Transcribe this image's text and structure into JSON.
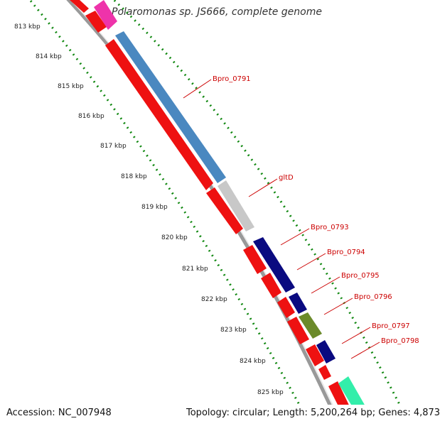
{
  "title": "Polaromonas sp. JS666, complete genome",
  "footer": {
    "accession": "Accession: NC_007948",
    "summary": "Topology: circular; Length: 5,200,264 bp; Genes: 4,873"
  },
  "ruler": {
    "unit": "kbp",
    "ticks": [
      "813 kbp",
      "814 kbp",
      "815 kbp",
      "816 kbp",
      "817 kbp",
      "818 kbp",
      "819 kbp",
      "820 kbp",
      "821 kbp",
      "822 kbp",
      "823 kbp",
      "824 kbp",
      "825 kbp"
    ]
  },
  "gene_labels": [
    "Bpro_0791",
    "gltD",
    "Bpro_0793",
    "Bpro_0794",
    "Bpro_0795",
    "Bpro_0796",
    "Bpro_0797",
    "Bpro_0798"
  ],
  "colors": {
    "cds": "#ee1111",
    "backbone": "#999999",
    "gc_dots": "#118811",
    "label": "#cc0000",
    "steelblue": "#4a88c0",
    "lightgrey": "#c8c8c8",
    "navy": "#0a0a80",
    "olive": "#6b8a2a",
    "magenta": "#ee33aa",
    "aqua": "#33eeaa"
  }
}
